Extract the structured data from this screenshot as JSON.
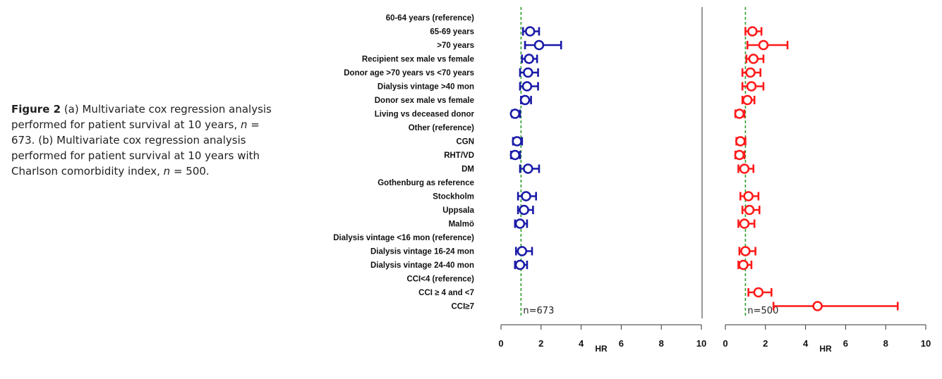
{
  "caption": {
    "fig_label": "Figure 2",
    "part_a": "(a) Multivariate cox regression analysis performed for patient survival at 10 years,",
    "n_a": "673",
    "part_b": "(b) Multivariate cox regression analysis performed for patient survival at 10 years with Charlson comorbidity index,",
    "n_b": "500"
  },
  "chart_data": {
    "type": "forest",
    "row_labels": [
      "60-64 years (reference)",
      "65-69 years",
      ">70 years",
      "Recipient sex male vs female",
      "Donor age >70 years vs <70 years",
      "Dialysis vintage >40 mon",
      "Donor sex male vs female",
      "Living vs deceased donor",
      "Other (reference)",
      "CGN",
      "RHT/VD",
      "DM",
      "Gothenburg as reference",
      "Stockholm",
      "Uppsala",
      "Malmö",
      "Dialysis vintage <16 mon (reference)",
      "Dialysis vintage 16-24 mon",
      "Dialysis vintage 24-40 mon",
      "CCI<4 (reference)",
      "CCI ≥ 4 and <7",
      "CCI≥7"
    ],
    "xlabel": "HR",
    "x_ticks": [
      0,
      2,
      4,
      6,
      8,
      10
    ],
    "xlim": [
      0,
      10
    ],
    "reference_line": 1,
    "panels": [
      {
        "n_label": "n=673",
        "color": "#1a1aa8",
        "points": [
          null,
          {
            "hr": 1.45,
            "lo": 1.1,
            "hi": 1.9
          },
          {
            "hr": 1.9,
            "lo": 1.2,
            "hi": 3.0
          },
          {
            "hr": 1.4,
            "lo": 1.05,
            "hi": 1.8
          },
          {
            "hr": 1.35,
            "lo": 0.95,
            "hi": 1.85
          },
          {
            "hr": 1.3,
            "lo": 0.95,
            "hi": 1.85
          },
          {
            "hr": 1.2,
            "lo": 1.0,
            "hi": 1.5
          },
          {
            "hr": 0.7,
            "lo": 0.55,
            "hi": 0.95
          },
          null,
          {
            "hr": 0.8,
            "lo": 0.6,
            "hi": 1.05
          },
          {
            "hr": 0.7,
            "lo": 0.5,
            "hi": 0.95
          },
          {
            "hr": 1.35,
            "lo": 0.95,
            "hi": 1.9
          },
          null,
          {
            "hr": 1.25,
            "lo": 0.85,
            "hi": 1.75
          },
          {
            "hr": 1.15,
            "lo": 0.85,
            "hi": 1.6
          },
          {
            "hr": 0.95,
            "lo": 0.7,
            "hi": 1.3
          },
          null,
          {
            "hr": 1.05,
            "lo": 0.75,
            "hi": 1.55
          },
          {
            "hr": 0.95,
            "lo": 0.7,
            "hi": 1.3
          },
          null,
          null,
          null
        ]
      },
      {
        "n_label": "n=500",
        "color": "#ff1a1a",
        "points": [
          null,
          {
            "hr": 1.35,
            "lo": 1.0,
            "hi": 1.8
          },
          {
            "hr": 1.9,
            "lo": 1.1,
            "hi": 3.1
          },
          {
            "hr": 1.4,
            "lo": 1.05,
            "hi": 1.9
          },
          {
            "hr": 1.25,
            "lo": 0.85,
            "hi": 1.75
          },
          {
            "hr": 1.3,
            "lo": 0.85,
            "hi": 1.9
          },
          {
            "hr": 1.1,
            "lo": 0.85,
            "hi": 1.45
          },
          {
            "hr": 0.7,
            "lo": 0.5,
            "hi": 0.95
          },
          null,
          {
            "hr": 0.75,
            "lo": 0.55,
            "hi": 1.0
          },
          {
            "hr": 0.7,
            "lo": 0.5,
            "hi": 0.95
          },
          {
            "hr": 0.95,
            "lo": 0.65,
            "hi": 1.4
          },
          null,
          {
            "hr": 1.15,
            "lo": 0.75,
            "hi": 1.65
          },
          {
            "hr": 1.2,
            "lo": 0.85,
            "hi": 1.7
          },
          {
            "hr": 0.95,
            "lo": 0.65,
            "hi": 1.45
          },
          null,
          {
            "hr": 1.0,
            "lo": 0.7,
            "hi": 1.5
          },
          {
            "hr": 0.9,
            "lo": 0.65,
            "hi": 1.3
          },
          null,
          {
            "hr": 1.65,
            "lo": 1.15,
            "hi": 2.3
          },
          {
            "hr": 4.6,
            "lo": 2.4,
            "hi": 8.6
          }
        ]
      }
    ]
  }
}
